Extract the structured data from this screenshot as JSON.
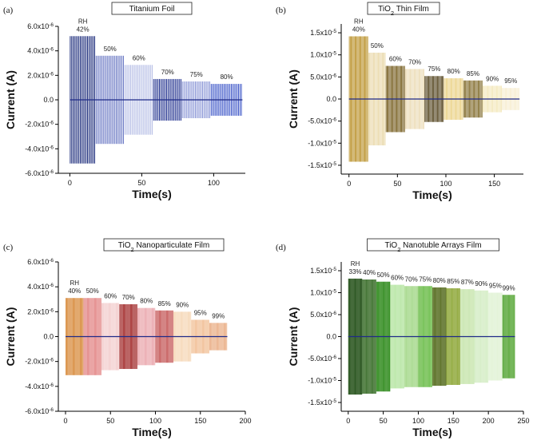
{
  "chart_data": [
    {
      "type": "bar",
      "panel": "(a)",
      "title": "Titanium Foil",
      "xlabel": "Time(s)",
      "ylabel": "Current  (A)",
      "xlim": [
        -8,
        122
      ],
      "ylim": [
        -6e-06,
        6e-06
      ],
      "xticks": [
        0,
        50,
        100
      ],
      "yticks": [
        -6e-06,
        -4e-06,
        -2e-06,
        0,
        2e-06,
        4e-06,
        6e-06
      ],
      "ytick_labels": [
        "-6.0x10-6",
        "-4.0x10-6",
        "-2.0x10-6",
        "0.0",
        "2.0x10-6",
        "4.0x10-6",
        "6.0x10-6"
      ],
      "rh_prefix": "RH",
      "series": [
        {
          "rh": "42%",
          "t_start": 0,
          "t_end": 18,
          "amplitude": 5.2e-06,
          "color": "#1a2a7a"
        },
        {
          "rh": "50%",
          "t_start": 18,
          "t_end": 38,
          "amplitude": 3.6e-06,
          "color": "#6b79c4"
        },
        {
          "rh": "60%",
          "t_start": 38,
          "t_end": 58,
          "amplitude": 2.85e-06,
          "color": "#b7bfe6"
        },
        {
          "rh": "70%",
          "t_start": 58,
          "t_end": 78,
          "amplitude": 1.7e-06,
          "color": "#23338f"
        },
        {
          "rh": "75%",
          "t_start": 78,
          "t_end": 98,
          "amplitude": 1.5e-06,
          "color": "#8a96d6"
        },
        {
          "rh": "80%",
          "t_start": 98,
          "t_end": 120,
          "amplitude": 1.3e-06,
          "color": "#3d56c8"
        }
      ]
    },
    {
      "type": "bar",
      "panel": "(b)",
      "title": "TiO2 Thin Film",
      "xlabel": "Time(s)",
      "ylabel": "Current  (A)",
      "xlim": [
        -8,
        180
      ],
      "ylim": [
        -1.7e-05,
        1.7e-05
      ],
      "xticks": [
        0,
        50,
        100,
        150
      ],
      "yticks": [
        -1.5e-05,
        -1e-05,
        -5e-06,
        0,
        5e-06,
        1e-05,
        1.5e-05
      ],
      "ytick_labels": [
        "-1.5x10-5",
        "-1.0x10-5",
        "-5.0x10-6",
        "0.0",
        "5.0x10-6",
        "1.0x10-5",
        "1.5x10-5"
      ],
      "rh_prefix": "RH",
      "series": [
        {
          "rh": "40%",
          "t_start": 0,
          "t_end": 20,
          "amplitude": 1.42e-05,
          "color": "#b58a1c"
        },
        {
          "rh": "50%",
          "t_start": 20,
          "t_end": 38,
          "amplitude": 1.05e-05,
          "color": "#e8d6a4"
        },
        {
          "rh": "60%",
          "t_start": 38,
          "t_end": 58,
          "amplitude": 7.5e-06,
          "color": "#6e5412"
        },
        {
          "rh": "70%",
          "t_start": 58,
          "t_end": 78,
          "amplitude": 6.8e-06,
          "color": "#ead9b0"
        },
        {
          "rh": "75%",
          "t_start": 78,
          "t_end": 98,
          "amplitude": 5.2e-06,
          "color": "#4a3a12"
        },
        {
          "rh": "80%",
          "t_start": 98,
          "t_end": 118,
          "amplitude": 4.7e-06,
          "color": "#e9cf7e"
        },
        {
          "rh": "85%",
          "t_start": 118,
          "t_end": 138,
          "amplitude": 4.2e-06,
          "color": "#7a6320"
        },
        {
          "rh": "90%",
          "t_start": 138,
          "t_end": 158,
          "amplitude": 3e-06,
          "color": "#f2e6b6"
        },
        {
          "rh": "95%",
          "t_start": 158,
          "t_end": 176,
          "amplitude": 2.5e-06,
          "color": "#f6eccd"
        }
      ]
    },
    {
      "type": "bar",
      "panel": "(c)",
      "title": "TiO2 Nanoparticulate Film",
      "xlabel": "Time(s)",
      "ylabel": "Current  (A)",
      "xlim": [
        -8,
        200
      ],
      "ylim": [
        -6e-06,
        6e-06
      ],
      "xticks": [
        0,
        50,
        100,
        150,
        200
      ],
      "yticks": [
        -6e-06,
        -4e-06,
        -2e-06,
        0,
        2e-06,
        4e-06,
        6e-06
      ],
      "ytick_labels": [
        "-6.0x10-6",
        "-4.0x10-6",
        "-2.0x10-6",
        "0.0",
        "2.0x10-6",
        "4.0x10-6",
        "6.0x10-6"
      ],
      "rh_prefix": "RH",
      "series": [
        {
          "rh": "40%",
          "t_start": 0,
          "t_end": 20,
          "amplitude": 3.1e-06,
          "color": "#d4802a"
        },
        {
          "rh": "50%",
          "t_start": 20,
          "t_end": 40,
          "amplitude": 3.1e-06,
          "color": "#e07a7a"
        },
        {
          "rh": "60%",
          "t_start": 40,
          "t_end": 60,
          "amplitude": 2.7e-06,
          "color": "#f2c9c9"
        },
        {
          "rh": "70%",
          "t_start": 60,
          "t_end": 80,
          "amplitude": 2.6e-06,
          "color": "#9a1a1a"
        },
        {
          "rh": "80%",
          "t_start": 80,
          "t_end": 100,
          "amplitude": 2.3e-06,
          "color": "#e8a0a6"
        },
        {
          "rh": "85%",
          "t_start": 100,
          "t_end": 120,
          "amplitude": 2.1e-06,
          "color": "#c04a4a"
        },
        {
          "rh": "90%",
          "t_start": 120,
          "t_end": 140,
          "amplitude": 2e-06,
          "color": "#f5d3b0"
        },
        {
          "rh": "95%",
          "t_start": 140,
          "t_end": 160,
          "amplitude": 1.35e-06,
          "color": "#f0b98c"
        },
        {
          "rh": "99%",
          "t_start": 160,
          "t_end": 180,
          "amplitude": 1.1e-06,
          "color": "#e8a87c"
        }
      ]
    },
    {
      "type": "bar",
      "panel": "(d)",
      "title": "TiO2 Nanotuble Arrays Film",
      "xlabel": "Time(s)",
      "ylabel": "Current  (A)",
      "xlim": [
        -10,
        250
      ],
      "ylim": [
        -1.7e-05,
        1.7e-05
      ],
      "xticks": [
        0,
        50,
        100,
        150,
        200,
        250
      ],
      "yticks": [
        -1.5e-05,
        -1e-05,
        -5e-06,
        0,
        5e-06,
        1e-05,
        1.5e-05
      ],
      "ytick_labels": [
        "-1.5x10-5",
        "-1.0x10-5",
        "-5.0x10-6",
        "0.0",
        "5.0x10-6",
        "1.0x10-5",
        "1.5x10-5"
      ],
      "rh_prefix": "RH",
      "series": [
        {
          "rh": "33%",
          "t_start": 0,
          "t_end": 20,
          "amplitude": 1.32e-05,
          "color": "#1f4d14"
        },
        {
          "rh": "40%",
          "t_start": 20,
          "t_end": 40,
          "amplitude": 1.3e-05,
          "color": "#3a6e2a"
        },
        {
          "rh": "50%",
          "t_start": 40,
          "t_end": 60,
          "amplitude": 1.25e-05,
          "color": "#2f8a1c"
        },
        {
          "rh": "60%",
          "t_start": 60,
          "t_end": 80,
          "amplitude": 1.18e-05,
          "color": "#b9e6a6"
        },
        {
          "rh": "70%",
          "t_start": 80,
          "t_end": 100,
          "amplitude": 1.15e-05,
          "color": "#a7d98d"
        },
        {
          "rh": "75%",
          "t_start": 100,
          "t_end": 120,
          "amplitude": 1.15e-05,
          "color": "#6fbf4e"
        },
        {
          "rh": "80%",
          "t_start": 120,
          "t_end": 140,
          "amplitude": 1.12e-05,
          "color": "#556b1e"
        },
        {
          "rh": "85%",
          "t_start": 140,
          "t_end": 160,
          "amplitude": 1.1e-05,
          "color": "#8fa83a"
        },
        {
          "rh": "87%",
          "t_start": 160,
          "t_end": 180,
          "amplitude": 1.08e-05,
          "color": "#c9e6b0"
        },
        {
          "rh": "90%",
          "t_start": 180,
          "t_end": 200,
          "amplitude": 1.05e-05,
          "color": "#d5edc6"
        },
        {
          "rh": "95%",
          "t_start": 200,
          "t_end": 220,
          "amplitude": 1e-05,
          "color": "#e2f3d6"
        },
        {
          "rh": "99%",
          "t_start": 220,
          "t_end": 238,
          "amplitude": 9.5e-06,
          "color": "#5aa83a"
        }
      ]
    }
  ]
}
